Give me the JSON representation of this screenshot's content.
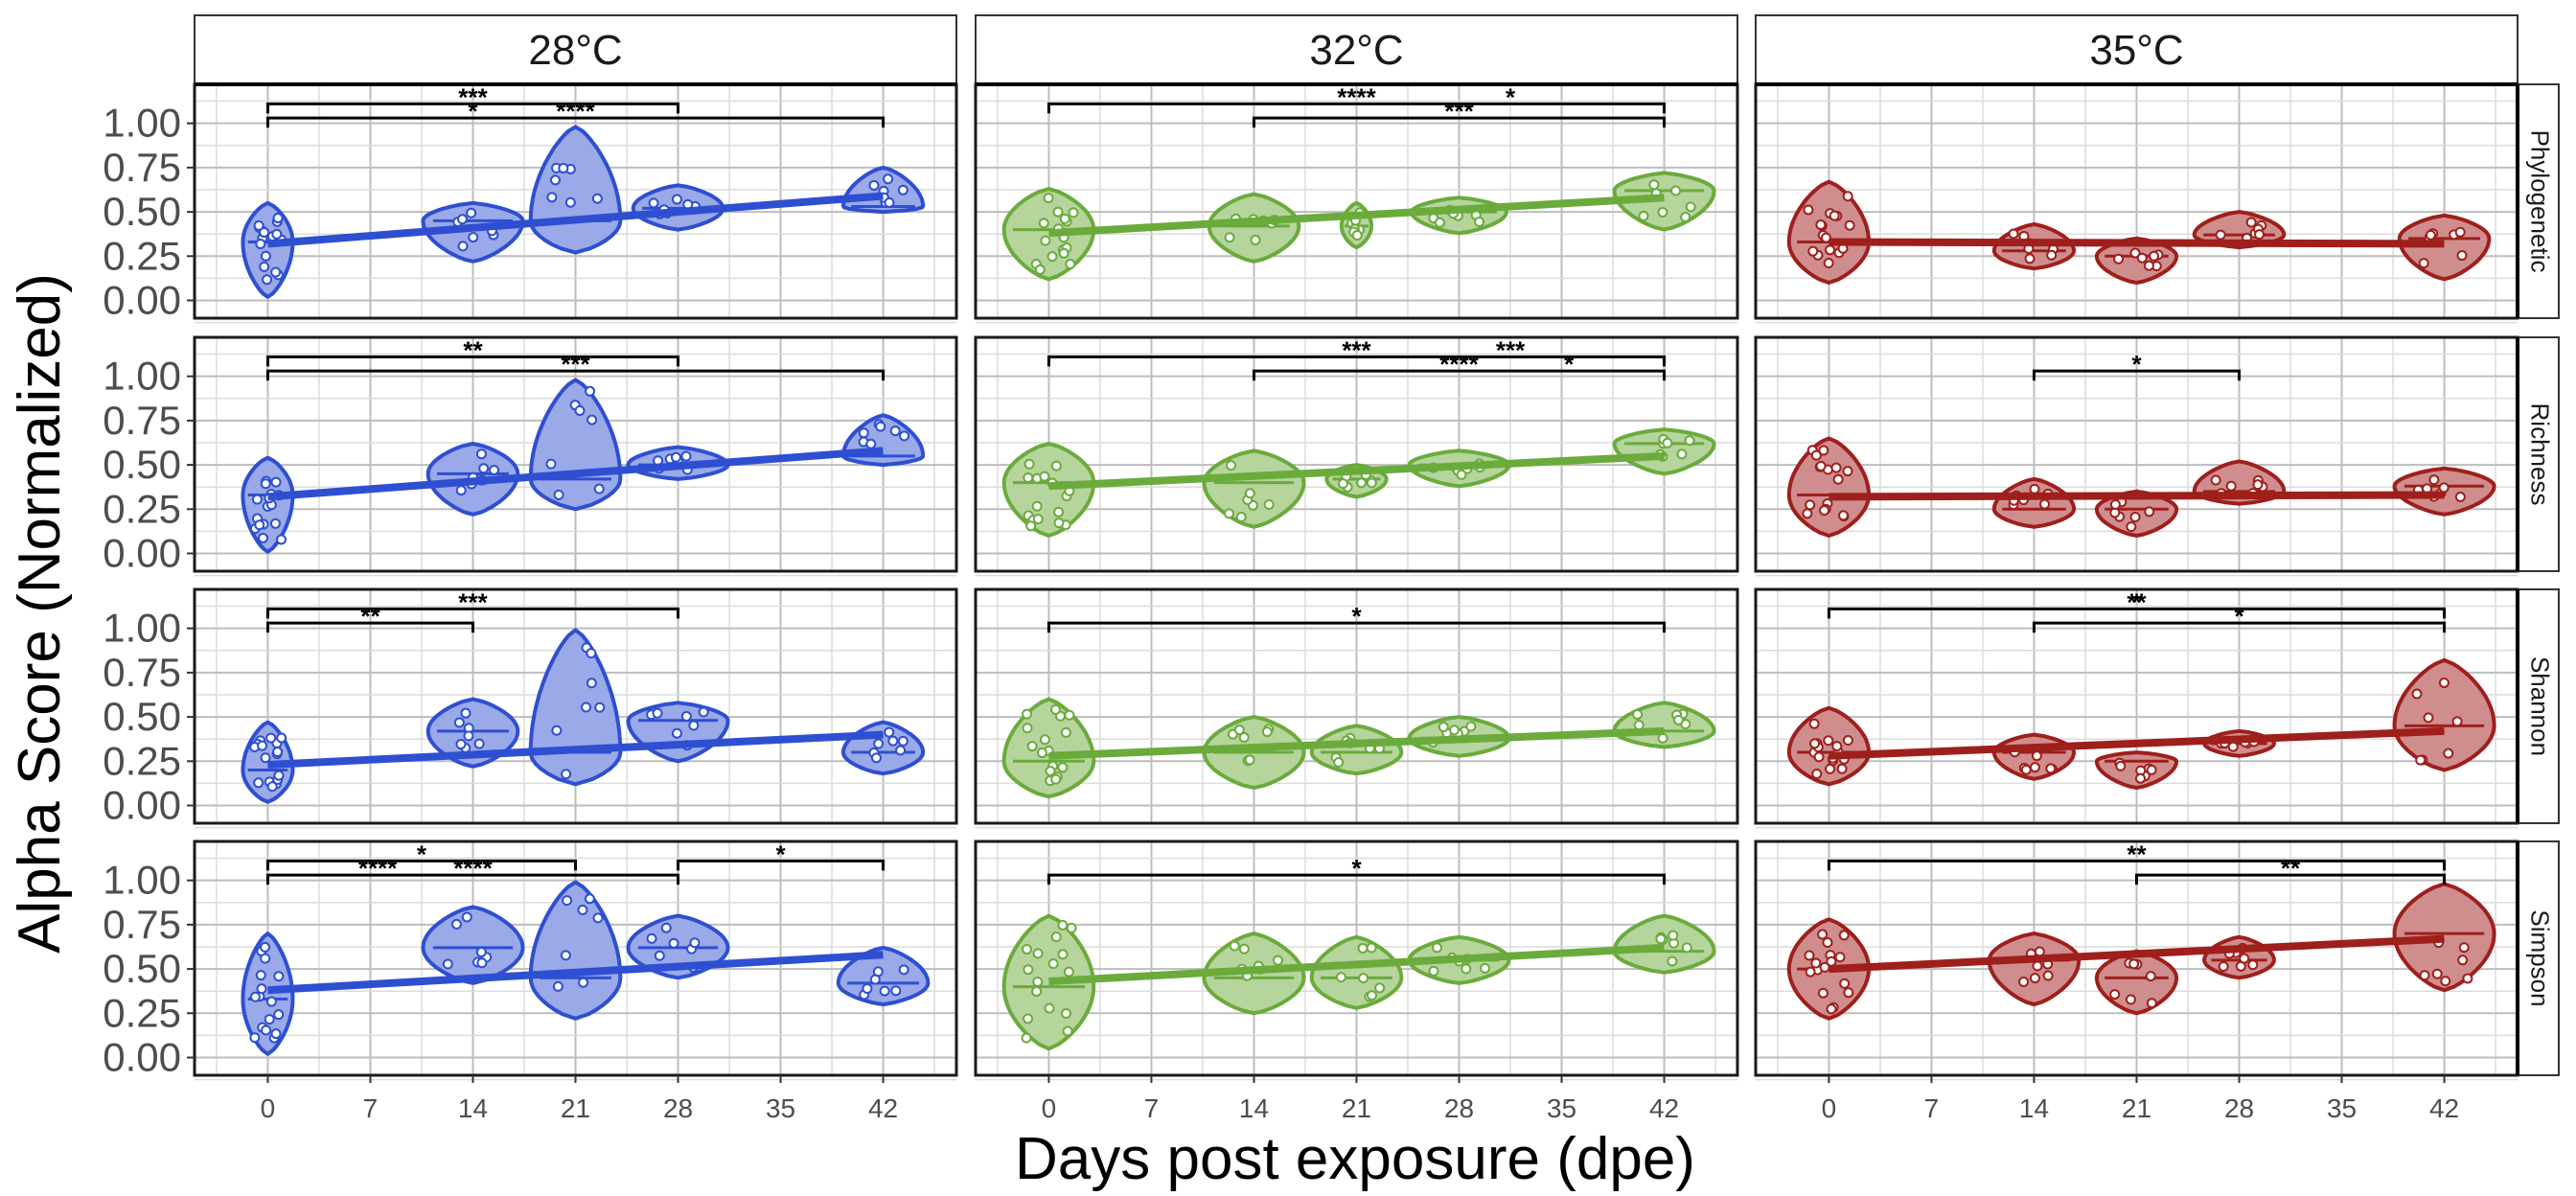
{
  "chart_data": {
    "type": "violin",
    "xlabel": "Days post exposure (dpe)",
    "ylabel": "Alpha Score (Normalized)",
    "x_ticks": [
      0,
      7,
      14,
      21,
      28,
      35,
      42
    ],
    "xlim": [
      -5,
      47
    ],
    "y_ticks": [
      0.0,
      0.25,
      0.5,
      0.75,
      1.0
    ],
    "y_tick_labels": [
      "0.00",
      "0.25",
      "0.50",
      "0.75",
      "1.00"
    ],
    "ylim": [
      -0.1,
      1.22
    ],
    "grid": true,
    "columns": [
      {
        "label": "28°C",
        "color": "#2e4fd1",
        "fill": "#9aa9e8"
      },
      {
        "label": "32°C",
        "color": "#6aab3c",
        "fill": "#b5d59d"
      },
      {
        "label": "35°C",
        "color": "#9e1f1c",
        "fill": "#cf8e8d"
      }
    ],
    "rows": [
      "Phylogenetic",
      "Richness",
      "Shannon",
      "Simpson"
    ],
    "panels": [
      [
        {
          "violins": [
            {
              "x": 0,
              "min": 0.02,
              "max": 0.55,
              "center": 0.33,
              "width": 0.5
            },
            {
              "x": 14,
              "min": 0.22,
              "max": 0.55,
              "center": 0.45,
              "width": 1.0
            },
            {
              "x": 21,
              "min": 0.27,
              "max": 0.98,
              "center": 0.45,
              "width": 0.9
            },
            {
              "x": 28,
              "min": 0.4,
              "max": 0.65,
              "center": 0.52,
              "width": 0.9
            },
            {
              "x": 42,
              "min": 0.5,
              "max": 0.75,
              "center": 0.53,
              "width": 0.8
            }
          ],
          "trend": [
            0.32,
            0.59
          ],
          "brackets": [
            {
              "x1": 0,
              "x2": 28,
              "y": 1.11,
              "label": "***"
            },
            {
              "x1": 0,
              "x2": 42,
              "y": 1.03,
              "label": "****"
            }
          ],
          "extra_labels": [
            {
              "x": 14,
              "y": 1.03,
              "label": "*"
            }
          ]
        },
        {
          "violins": [
            {
              "x": 0,
              "min": 0.12,
              "max": 0.63,
              "center": 0.4,
              "width": 0.9
            },
            {
              "x": 14,
              "min": 0.22,
              "max": 0.6,
              "center": 0.42,
              "width": 0.9
            },
            {
              "x": 21,
              "min": 0.3,
              "max": 0.55,
              "center": 0.42,
              "width": 0.3
            },
            {
              "x": 28,
              "min": 0.38,
              "max": 0.58,
              "center": 0.5,
              "width": 0.95
            },
            {
              "x": 42,
              "min": 0.4,
              "max": 0.72,
              "center": 0.62,
              "width": 1.0
            }
          ],
          "trend": [
            0.38,
            0.58
          ],
          "brackets": [
            {
              "x1": 0,
              "x2": 42,
              "y": 1.11,
              "label": "****"
            },
            {
              "x1": 14,
              "x2": 42,
              "y": 1.03,
              "label": "***"
            }
          ],
          "extra_labels": [
            {
              "x": 31.5,
              "y": 1.11,
              "label": "*"
            }
          ]
        },
        {
          "violins": [
            {
              "x": 0,
              "min": 0.1,
              "max": 0.67,
              "center": 0.33,
              "width": 0.8
            },
            {
              "x": 14,
              "min": 0.18,
              "max": 0.43,
              "center": 0.28,
              "width": 0.8
            },
            {
              "x": 21,
              "min": 0.1,
              "max": 0.35,
              "center": 0.25,
              "width": 0.8
            },
            {
              "x": 28,
              "min": 0.3,
              "max": 0.5,
              "center": 0.37,
              "width": 0.9
            },
            {
              "x": 42,
              "min": 0.12,
              "max": 0.48,
              "center": 0.35,
              "width": 0.9
            }
          ],
          "trend": [
            0.33,
            0.32
          ],
          "brackets": [],
          "extra_labels": []
        }
      ],
      [
        {
          "violins": [
            {
              "x": 0,
              "min": 0.01,
              "max": 0.54,
              "center": 0.33,
              "width": 0.5
            },
            {
              "x": 14,
              "min": 0.22,
              "max": 0.62,
              "center": 0.45,
              "width": 0.9
            },
            {
              "x": 21,
              "min": 0.25,
              "max": 0.98,
              "center": 0.42,
              "width": 0.9
            },
            {
              "x": 28,
              "min": 0.42,
              "max": 0.6,
              "center": 0.5,
              "width": 1.0
            },
            {
              "x": 42,
              "min": 0.5,
              "max": 0.78,
              "center": 0.55,
              "width": 0.8
            }
          ],
          "trend": [
            0.32,
            0.58
          ],
          "brackets": [
            {
              "x1": 0,
              "x2": 28,
              "y": 1.11,
              "label": "**"
            },
            {
              "x1": 0,
              "x2": 42,
              "y": 1.03,
              "label": "***"
            }
          ],
          "extra_labels": []
        },
        {
          "violins": [
            {
              "x": 0,
              "min": 0.1,
              "max": 0.62,
              "center": 0.4,
              "width": 0.9
            },
            {
              "x": 14,
              "min": 0.15,
              "max": 0.58,
              "center": 0.4,
              "width": 1.0
            },
            {
              "x": 21,
              "min": 0.32,
              "max": 0.5,
              "center": 0.42,
              "width": 0.6
            },
            {
              "x": 28,
              "min": 0.38,
              "max": 0.58,
              "center": 0.5,
              "width": 1.0
            },
            {
              "x": 42,
              "min": 0.45,
              "max": 0.7,
              "center": 0.62,
              "width": 1.0
            }
          ],
          "trend": [
            0.38,
            0.55
          ],
          "brackets": [
            {
              "x1": 0,
              "x2": 42,
              "y": 1.11,
              "label": "***"
            },
            {
              "x1": 14,
              "x2": 42,
              "y": 1.03,
              "label": "****"
            }
          ],
          "extra_labels": [
            {
              "x": 31.5,
              "y": 1.11,
              "label": "***"
            },
            {
              "x": 35.5,
              "y": 1.03,
              "label": "*"
            }
          ]
        },
        {
          "violins": [
            {
              "x": 0,
              "min": 0.1,
              "max": 0.65,
              "center": 0.33,
              "width": 0.8
            },
            {
              "x": 14,
              "min": 0.15,
              "max": 0.42,
              "center": 0.25,
              "width": 0.8
            },
            {
              "x": 21,
              "min": 0.1,
              "max": 0.35,
              "center": 0.25,
              "width": 0.8
            },
            {
              "x": 28,
              "min": 0.28,
              "max": 0.52,
              "center": 0.35,
              "width": 0.9
            },
            {
              "x": 42,
              "min": 0.22,
              "max": 0.48,
              "center": 0.38,
              "width": 1.0
            }
          ],
          "trend": [
            0.32,
            0.33
          ],
          "brackets": [
            {
              "x1": 14,
              "x2": 28,
              "y": 1.03,
              "label": "*"
            }
          ],
          "extra_labels": []
        }
      ],
      [
        {
          "violins": [
            {
              "x": 0,
              "min": 0.02,
              "max": 0.47,
              "center": 0.2,
              "width": 0.5
            },
            {
              "x": 14,
              "min": 0.22,
              "max": 0.6,
              "center": 0.42,
              "width": 0.9
            },
            {
              "x": 21,
              "min": 0.12,
              "max": 0.99,
              "center": 0.3,
              "width": 0.9
            },
            {
              "x": 28,
              "min": 0.25,
              "max": 0.58,
              "center": 0.48,
              "width": 1.0
            },
            {
              "x": 42,
              "min": 0.18,
              "max": 0.47,
              "center": 0.3,
              "width": 0.8
            }
          ],
          "trend": [
            0.23,
            0.4
          ],
          "brackets": [
            {
              "x1": 0,
              "x2": 28,
              "y": 1.11,
              "label": "***"
            },
            {
              "x1": 0,
              "x2": 14,
              "y": 1.03,
              "label": "**"
            }
          ],
          "extra_labels": []
        },
        {
          "violins": [
            {
              "x": 0,
              "min": 0.05,
              "max": 0.6,
              "center": 0.25,
              "width": 0.9
            },
            {
              "x": 14,
              "min": 0.1,
              "max": 0.5,
              "center": 0.3,
              "width": 1.0
            },
            {
              "x": 21,
              "min": 0.18,
              "max": 0.45,
              "center": 0.3,
              "width": 0.9
            },
            {
              "x": 28,
              "min": 0.28,
              "max": 0.5,
              "center": 0.38,
              "width": 1.0
            },
            {
              "x": 42,
              "min": 0.33,
              "max": 0.58,
              "center": 0.42,
              "width": 1.0
            }
          ],
          "trend": [
            0.28,
            0.42
          ],
          "brackets": [
            {
              "x1": 0,
              "x2": 42,
              "y": 1.03,
              "label": "*"
            }
          ],
          "extra_labels": []
        },
        {
          "violins": [
            {
              "x": 0,
              "min": 0.12,
              "max": 0.55,
              "center": 0.3,
              "width": 0.8
            },
            {
              "x": 14,
              "min": 0.15,
              "max": 0.4,
              "center": 0.3,
              "width": 0.8
            },
            {
              "x": 21,
              "min": 0.1,
              "max": 0.3,
              "center": 0.25,
              "width": 0.8
            },
            {
              "x": 28,
              "min": 0.28,
              "max": 0.42,
              "center": 0.35,
              "width": 0.7
            },
            {
              "x": 42,
              "min": 0.2,
              "max": 0.82,
              "center": 0.45,
              "width": 1.0
            }
          ],
          "trend": [
            0.28,
            0.42
          ],
          "brackets": [
            {
              "x1": 0,
              "x2": 42,
              "y": 1.11,
              "label": "**"
            },
            {
              "x1": 14,
              "x2": 42,
              "y": 1.03,
              "label": "*"
            }
          ],
          "extra_labels": [
            {
              "x": 21,
              "y": 1.11,
              "label": "*"
            }
          ]
        }
      ],
      [
        {
          "violins": [
            {
              "x": 0,
              "min": 0.02,
              "max": 0.7,
              "center": 0.33,
              "width": 0.5
            },
            {
              "x": 14,
              "min": 0.42,
              "max": 0.85,
              "center": 0.62,
              "width": 1.0
            },
            {
              "x": 21,
              "min": 0.22,
              "max": 0.99,
              "center": 0.45,
              "width": 0.9
            },
            {
              "x": 28,
              "min": 0.45,
              "max": 0.8,
              "center": 0.62,
              "width": 1.0
            },
            {
              "x": 42,
              "min": 0.3,
              "max": 0.62,
              "center": 0.42,
              "width": 0.9
            }
          ],
          "trend": [
            0.38,
            0.58
          ],
          "brackets": [
            {
              "x1": 0,
              "x2": 21,
              "y": 1.11,
              "label": "*"
            },
            {
              "x1": 28,
              "x2": 42,
              "y": 1.11,
              "label": "*"
            },
            {
              "x1": 0,
              "x2": 28,
              "y": 1.03,
              "label": "****"
            }
          ],
          "extra_labels": [
            {
              "x": 7.5,
              "y": 1.03,
              "label": "****"
            }
          ]
        },
        {
          "violins": [
            {
              "x": 0,
              "min": 0.05,
              "max": 0.8,
              "center": 0.4,
              "width": 0.9
            },
            {
              "x": 14,
              "min": 0.25,
              "max": 0.7,
              "center": 0.45,
              "width": 1.0
            },
            {
              "x": 21,
              "min": 0.28,
              "max": 0.68,
              "center": 0.45,
              "width": 0.9
            },
            {
              "x": 28,
              "min": 0.42,
              "max": 0.68,
              "center": 0.55,
              "width": 1.0
            },
            {
              "x": 42,
              "min": 0.48,
              "max": 0.8,
              "center": 0.6,
              "width": 1.0
            }
          ],
          "trend": [
            0.43,
            0.62
          ],
          "brackets": [
            {
              "x1": 0,
              "x2": 42,
              "y": 1.03,
              "label": "*"
            }
          ],
          "extra_labels": []
        },
        {
          "violins": [
            {
              "x": 0,
              "min": 0.22,
              "max": 0.78,
              "center": 0.5,
              "width": 0.8
            },
            {
              "x": 14,
              "min": 0.3,
              "max": 0.7,
              "center": 0.55,
              "width": 0.9
            },
            {
              "x": 21,
              "min": 0.25,
              "max": 0.6,
              "center": 0.45,
              "width": 0.8
            },
            {
              "x": 28,
              "min": 0.45,
              "max": 0.68,
              "center": 0.55,
              "width": 0.7
            },
            {
              "x": 42,
              "min": 0.38,
              "max": 0.98,
              "center": 0.7,
              "width": 1.0
            }
          ],
          "trend": [
            0.5,
            0.67
          ],
          "brackets": [
            {
              "x1": 0,
              "x2": 42,
              "y": 1.11,
              "label": "**"
            },
            {
              "x1": 21,
              "x2": 42,
              "y": 1.03,
              "label": "**"
            }
          ],
          "extra_labels": []
        }
      ]
    ]
  }
}
